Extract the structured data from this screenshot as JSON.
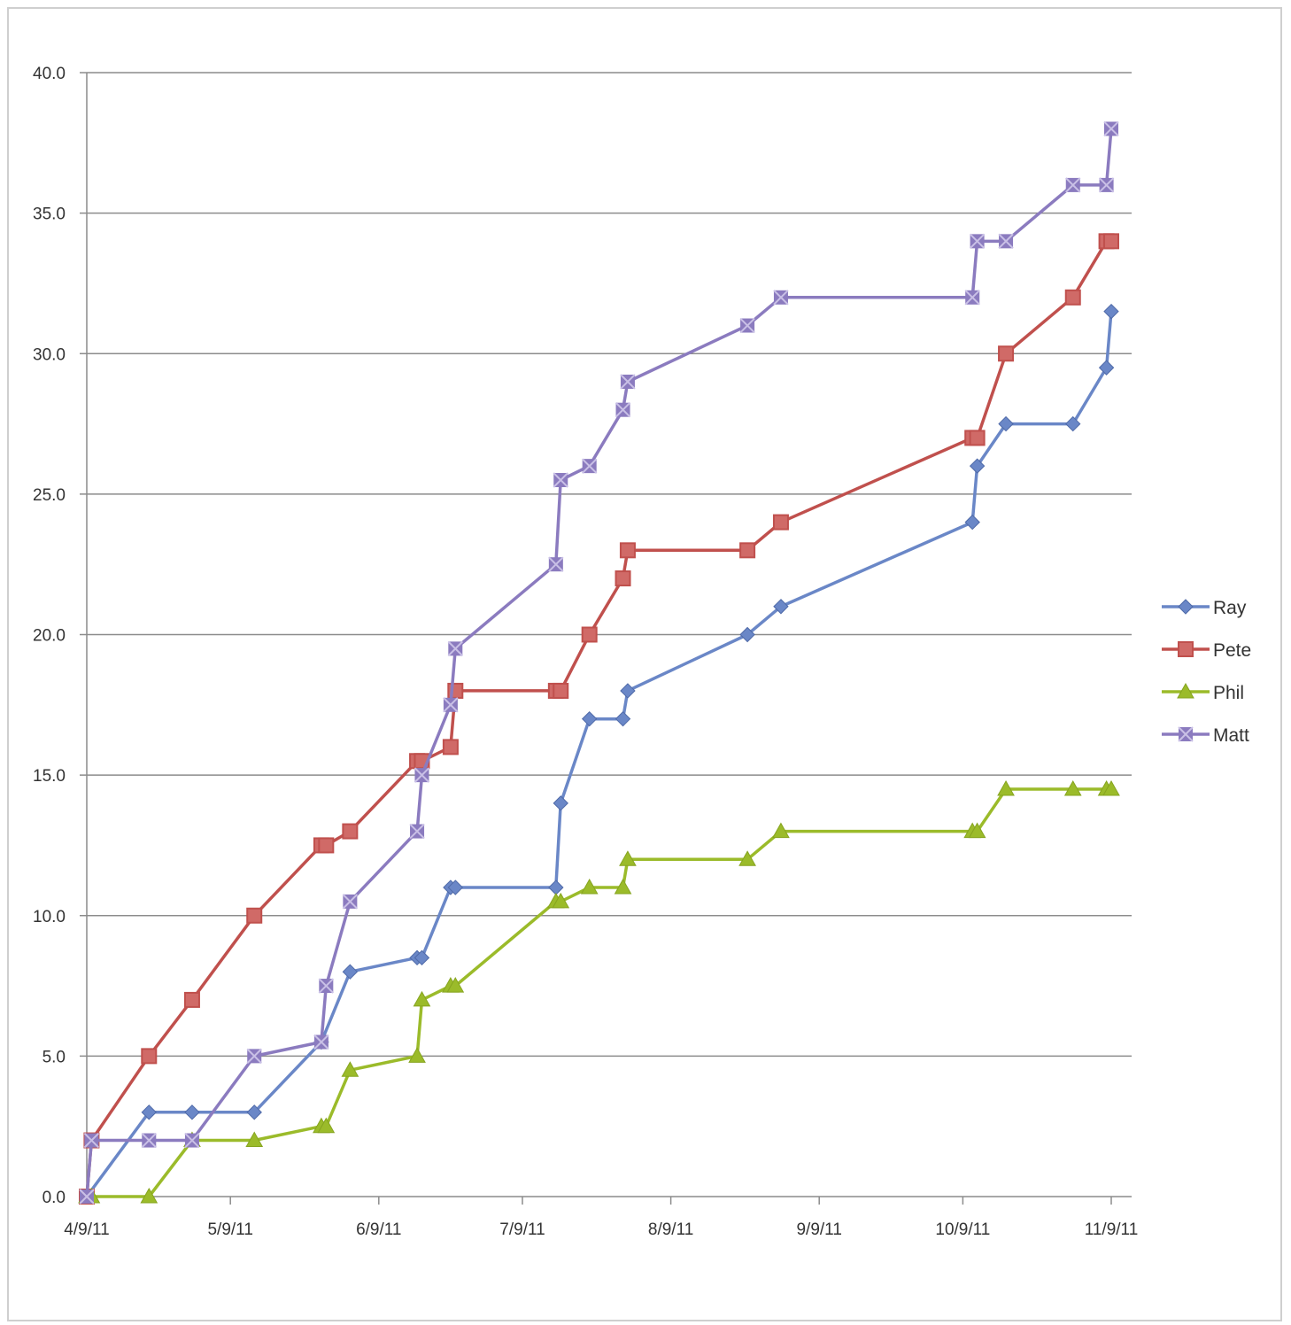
{
  "chart_data": {
    "type": "line",
    "title": "",
    "xlabel": "",
    "ylabel": "",
    "x_axis": {
      "type": "date",
      "range": [
        "2011-04-09",
        "2011-11-13"
      ],
      "tick_labels": [
        "4/9/11",
        "5/9/11",
        "6/9/11",
        "7/9/11",
        "8/9/11",
        "9/9/11",
        "10/9/11",
        "11/9/11"
      ],
      "tick_dates": [
        "2011-04-09",
        "2011-05-09",
        "2011-06-09",
        "2011-07-09",
        "2011-08-09",
        "2011-09-09",
        "2011-10-09",
        "2011-11-09"
      ]
    },
    "y_axis": {
      "range": [
        0,
        40
      ],
      "tick_labels": [
        "0.0",
        "5.0",
        "10.0",
        "15.0",
        "20.0",
        "25.0",
        "30.0",
        "35.0",
        "40.0"
      ],
      "tick_values": [
        0,
        5,
        10,
        15,
        20,
        25,
        30,
        35,
        40
      ]
    },
    "grid": "horizontal",
    "legend": "right",
    "series": [
      {
        "name": "Ray",
        "color": "#6a87c7",
        "marker": "diamond",
        "points": [
          [
            "2011-04-09",
            0
          ],
          [
            "2011-04-22",
            3
          ],
          [
            "2011-05-01",
            3
          ],
          [
            "2011-05-14",
            3
          ],
          [
            "2011-05-28",
            5.5
          ],
          [
            "2011-06-03",
            8
          ],
          [
            "2011-06-17",
            8.5
          ],
          [
            "2011-06-18",
            8.5
          ],
          [
            "2011-06-24",
            11
          ],
          [
            "2011-06-25",
            11
          ],
          [
            "2011-07-16",
            11
          ],
          [
            "2011-07-17",
            14
          ],
          [
            "2011-07-23",
            17
          ],
          [
            "2011-07-30",
            17
          ],
          [
            "2011-07-31",
            18
          ],
          [
            "2011-08-25",
            20
          ],
          [
            "2011-09-01",
            21
          ],
          [
            "2011-10-11",
            24
          ],
          [
            "2011-10-12",
            26
          ],
          [
            "2011-10-18",
            27.5
          ],
          [
            "2011-11-01",
            27.5
          ],
          [
            "2011-11-08",
            29.5
          ],
          [
            "2011-11-09",
            31.5
          ]
        ]
      },
      {
        "name": "Pete",
        "color": "#c0504d",
        "marker": "square",
        "points": [
          [
            "2011-04-09",
            0
          ],
          [
            "2011-04-10",
            2
          ],
          [
            "2011-04-22",
            5
          ],
          [
            "2011-05-01",
            7
          ],
          [
            "2011-05-14",
            10
          ],
          [
            "2011-05-28",
            12.5
          ],
          [
            "2011-05-29",
            12.5
          ],
          [
            "2011-06-03",
            13
          ],
          [
            "2011-06-17",
            15.5
          ],
          [
            "2011-06-18",
            15.5
          ],
          [
            "2011-06-24",
            16
          ],
          [
            "2011-06-25",
            18
          ],
          [
            "2011-07-16",
            18
          ],
          [
            "2011-07-17",
            18
          ],
          [
            "2011-07-23",
            20
          ],
          [
            "2011-07-30",
            22
          ],
          [
            "2011-07-31",
            23
          ],
          [
            "2011-08-25",
            23
          ],
          [
            "2011-09-01",
            24
          ],
          [
            "2011-10-11",
            27
          ],
          [
            "2011-10-12",
            27
          ],
          [
            "2011-10-18",
            30
          ],
          [
            "2011-11-01",
            32
          ],
          [
            "2011-11-08",
            34
          ],
          [
            "2011-11-09",
            34
          ]
        ]
      },
      {
        "name": "Phil",
        "color": "#9bbb2a",
        "marker": "triangle",
        "points": [
          [
            "2011-04-09",
            0
          ],
          [
            "2011-04-10",
            0
          ],
          [
            "2011-04-22",
            0
          ],
          [
            "2011-05-01",
            2
          ],
          [
            "2011-05-14",
            2
          ],
          [
            "2011-05-28",
            2.5
          ],
          [
            "2011-05-29",
            2.5
          ],
          [
            "2011-06-03",
            4.5
          ],
          [
            "2011-06-17",
            5
          ],
          [
            "2011-06-18",
            7
          ],
          [
            "2011-06-24",
            7.5
          ],
          [
            "2011-06-25",
            7.5
          ],
          [
            "2011-07-16",
            10.5
          ],
          [
            "2011-07-17",
            10.5
          ],
          [
            "2011-07-23",
            11
          ],
          [
            "2011-07-30",
            11
          ],
          [
            "2011-07-31",
            12
          ],
          [
            "2011-08-25",
            12
          ],
          [
            "2011-09-01",
            13
          ],
          [
            "2011-10-11",
            13
          ],
          [
            "2011-10-12",
            13
          ],
          [
            "2011-10-18",
            14.5
          ],
          [
            "2011-11-01",
            14.5
          ],
          [
            "2011-11-08",
            14.5
          ],
          [
            "2011-11-09",
            14.5
          ]
        ]
      },
      {
        "name": "Matt",
        "color": "#8b7bbf",
        "marker": "star-square",
        "points": [
          [
            "2011-04-09",
            0
          ],
          [
            "2011-04-10",
            2
          ],
          [
            "2011-04-22",
            2
          ],
          [
            "2011-05-01",
            2
          ],
          [
            "2011-05-14",
            5
          ],
          [
            "2011-05-28",
            5.5
          ],
          [
            "2011-05-29",
            7.5
          ],
          [
            "2011-06-03",
            10.5
          ],
          [
            "2011-06-17",
            13
          ],
          [
            "2011-06-18",
            15
          ],
          [
            "2011-06-24",
            17.5
          ],
          [
            "2011-06-25",
            19.5
          ],
          [
            "2011-07-16",
            22.5
          ],
          [
            "2011-07-17",
            25.5
          ],
          [
            "2011-07-23",
            26
          ],
          [
            "2011-07-30",
            28
          ],
          [
            "2011-07-31",
            29
          ],
          [
            "2011-08-25",
            31
          ],
          [
            "2011-09-01",
            32
          ],
          [
            "2011-10-11",
            32
          ],
          [
            "2011-10-12",
            34
          ],
          [
            "2011-10-18",
            34
          ],
          [
            "2011-11-01",
            36
          ],
          [
            "2011-11-08",
            36
          ],
          [
            "2011-11-09",
            38
          ]
        ]
      }
    ]
  }
}
